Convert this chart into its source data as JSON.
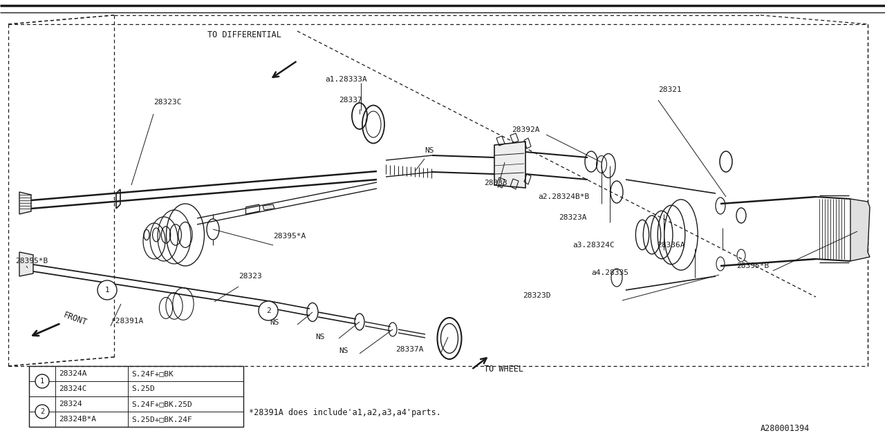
{
  "bg_color": "#ffffff",
  "line_color": "#1a1a1a",
  "footnote": "*28391A does include'a1,a2,a3,a4'parts.",
  "catalog_num": "A280001394",
  "table_data": [
    [
      "1",
      "28324A",
      "S.24F+□BK"
    ],
    [
      "1",
      "28324C",
      "S.25D"
    ],
    [
      "2",
      "28324",
      "S.24F+□BK.25D"
    ],
    [
      "2",
      "28324B*A",
      "S.25D+□BK.24F"
    ]
  ]
}
